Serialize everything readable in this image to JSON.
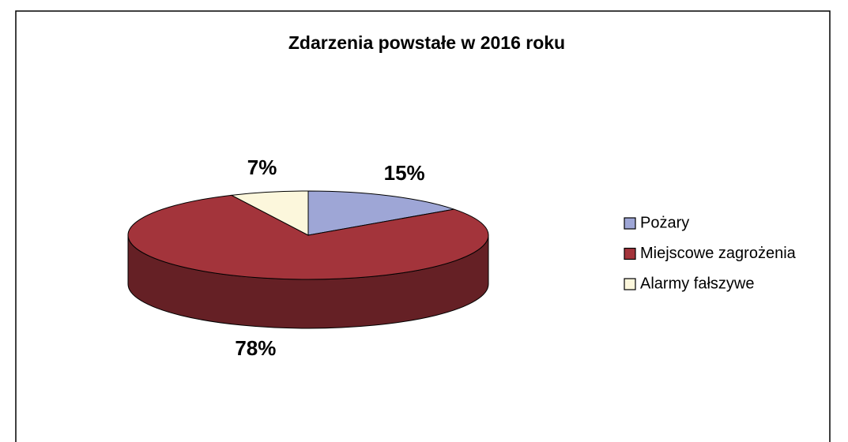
{
  "chart_data": {
    "type": "pie",
    "title": "Zdarzenia powstałe w 2016 roku",
    "categories": [
      "Pożary",
      "Miejscowe zagrożenia",
      "Alarmy fałszywe"
    ],
    "values": [
      15,
      78,
      7
    ],
    "value_labels": [
      "15%",
      "78%",
      "7%"
    ],
    "colors": [
      "#9ea6d6",
      "#a3343b",
      "#fcf7dc"
    ],
    "legend": "right"
  }
}
